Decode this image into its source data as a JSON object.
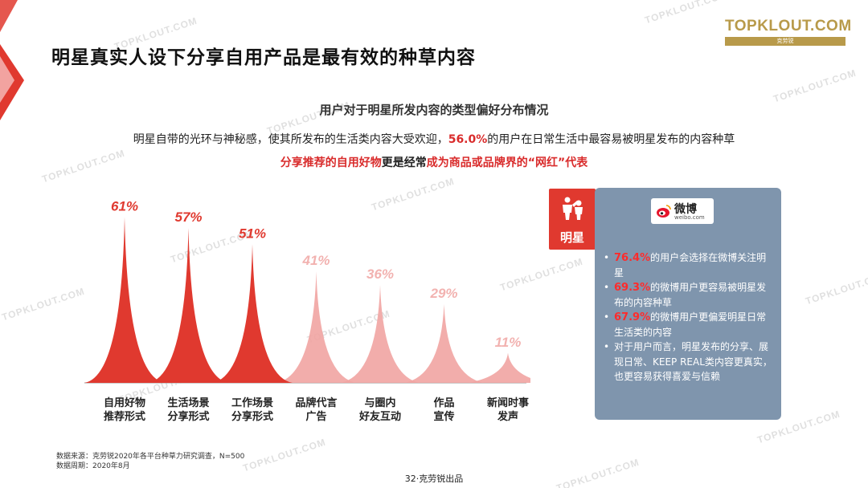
{
  "header": {
    "title": "明星真实人设下分享自用产品是最有效的种草内容",
    "logo_main": "TOPKLOUT.COM",
    "logo_sub": "克劳锐"
  },
  "watermark": "TOPKLOUT.COM",
  "chart_data": {
    "type": "area",
    "title": "用户对于明星所发内容的类型偏好分布情况",
    "categories": [
      "自用好物推荐形式",
      "生活场景分享形式",
      "工作场景分享形式",
      "品牌代言广告",
      "与圈内好友互动",
      "作品宣传",
      "新闻时事发声"
    ],
    "category_lines": [
      [
        "自用好物",
        "推荐形式"
      ],
      [
        "生活场景",
        "分享形式"
      ],
      [
        "工作场景",
        "分享形式"
      ],
      [
        "品牌代言",
        "广告"
      ],
      [
        "与圈内",
        "好友互动"
      ],
      [
        "作品",
        "宣传"
      ],
      [
        "新闻时事",
        "发声"
      ]
    ],
    "values": [
      61,
      57,
      51,
      41,
      36,
      29,
      11
    ],
    "value_labels": [
      "61%",
      "57%",
      "51%",
      "41%",
      "36%",
      "29%",
      "11%"
    ],
    "ylim": [
      0,
      65
    ],
    "highlight_count": 3,
    "colors": {
      "highlight": "#e0392f",
      "normal": "#f1a4a2",
      "label_normal": "#f2b2b0"
    }
  },
  "text": {
    "desc1_a": "明星自带的光环与神秘感，使其所发布的生活类内容大受欢迎，",
    "desc1_b": "56.0%",
    "desc1_c": "的用户在日常生活中最容易被明星发布的内容种草",
    "desc2_a": "分享推荐的自用好物",
    "desc2_b": "更是经常",
    "desc2_c": "成为商品或品牌界的“网红”代表"
  },
  "badge": {
    "icon": "celebrity-icon",
    "label": "明星"
  },
  "panel": {
    "weibo_name": "微博",
    "weibo_url": "weibo.com",
    "bullets": [
      {
        "num": "76.4%",
        "text": "的用户会选择在微博关注明星"
      },
      {
        "num": "69.3%",
        "text": "的微博用户更容易被明星发布的内容种草"
      },
      {
        "num": "67.9%",
        "text": "的微博用户更偏爱明星日常生活类的内容"
      },
      {
        "num": "",
        "text": "对于用户而言，明星发布的分享、展现日常、KEEP REAL类内容更真实，也更容易获得喜爱与信赖"
      }
    ]
  },
  "source": {
    "line1": "数据来源：克劳锐2020年各平台种草力研究调查，N=500",
    "line2": "数据周期：2020年8月"
  },
  "footer": "32·克劳锐出品"
}
